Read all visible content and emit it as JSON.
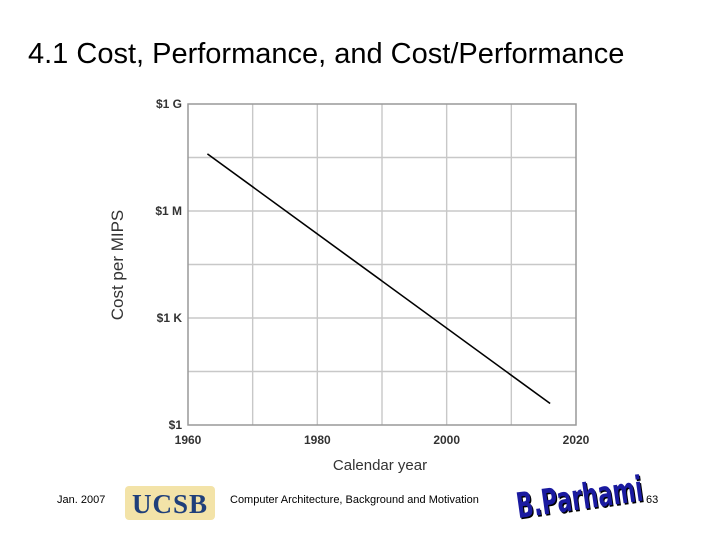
{
  "slide": {
    "title": "4.1  Cost, Performance, and Cost/Performance"
  },
  "footer": {
    "date": "Jan. 2007",
    "logo_text": "UCSB",
    "course": "Computer Architecture, Background and Motivation",
    "signature": "B.Parhami",
    "page": "63"
  },
  "chart_data": {
    "type": "line",
    "xlabel": "Calendar year",
    "ylabel": "Cost per MIPS",
    "xlim": [
      1960,
      2020
    ],
    "xticks": [
      "1960",
      "1980",
      "2000",
      "2020"
    ],
    "yscale": "log",
    "ylim": [
      1,
      1000000000
    ],
    "yticks": [
      {
        "label": "$1",
        "value": 1
      },
      {
        "label": "$1 K",
        "value": 1000
      },
      {
        "label": "$1 M",
        "value": 1000000
      },
      {
        "label": "$1 G",
        "value": 1000000000
      }
    ],
    "grid": true,
    "series": [
      {
        "x": [
          1963,
          2016
        ],
        "y": [
          40000000,
          4
        ],
        "color": "#000000"
      }
    ]
  }
}
